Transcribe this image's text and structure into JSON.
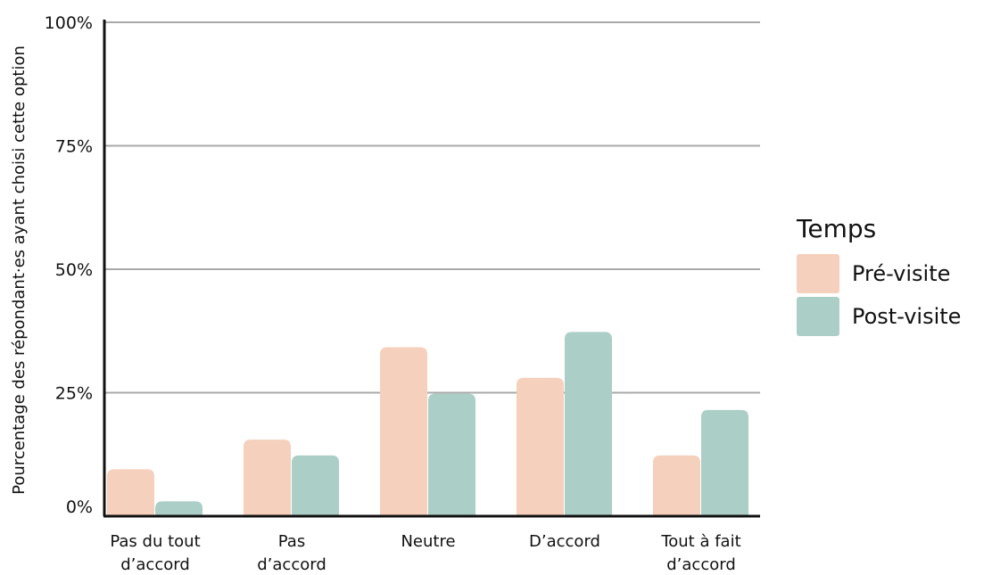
{
  "chart_data": {
    "type": "bar",
    "categories": [
      [
        "Pas du tout",
        "d’accord"
      ],
      [
        "Pas",
        "d’accord"
      ],
      [
        "Neutre"
      ],
      [
        "D’accord"
      ],
      [
        "Tout à fait",
        "d’accord"
      ]
    ],
    "series": [
      {
        "name": "Pré-visite",
        "color": "#f4d0bd",
        "values": [
          9.5,
          15.5,
          34.2,
          28,
          12.3
        ]
      },
      {
        "name": "Post-visite",
        "color": "#abcec6",
        "values": [
          3,
          12.3,
          24.8,
          37.3,
          21.5
        ]
      }
    ],
    "ylabel": "Pourcentage des répondant·es ayant choisi cette option",
    "yticks": [
      {
        "value": 0,
        "label": "0%"
      },
      {
        "value": 25,
        "label": "25%"
      },
      {
        "value": 50,
        "label": "50%"
      },
      {
        "value": 75,
        "label": "75%"
      },
      {
        "value": 100,
        "label": "100%"
      }
    ],
    "ylim": [
      0,
      100
    ],
    "grid": true,
    "legend": {
      "title": "Temps",
      "position": "right"
    }
  }
}
